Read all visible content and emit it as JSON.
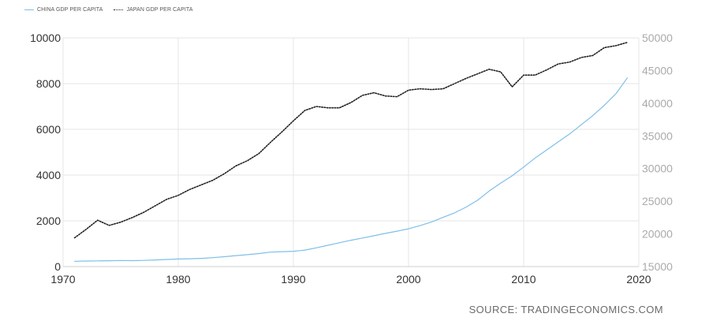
{
  "legend": {
    "china": "CHINA GDP PER CAPITA",
    "japan": "JAPAN GDP PER CAPITA"
  },
  "source": "SOURCE: TRADINGECONOMICS.COM",
  "colors": {
    "china": "#7fbfe8",
    "japan": "#222222",
    "grid": "#e6e6e6",
    "axis_text": "#333333",
    "axis_text_right": "#aaaaaa"
  },
  "chart_data": {
    "type": "line",
    "title": "",
    "xlabel": "",
    "ylabel": "",
    "xlim": [
      1970,
      2020
    ],
    "x_ticks": [
      1970,
      1980,
      1990,
      2000,
      2010,
      2020
    ],
    "y_left_lim": [
      0,
      10000
    ],
    "y_left_ticks": [
      0,
      2000,
      4000,
      6000,
      8000,
      10000
    ],
    "y_right_lim": [
      15000,
      50000
    ],
    "y_right_ticks": [
      15000,
      20000,
      25000,
      30000,
      35000,
      40000,
      45000,
      50000
    ],
    "grid": true,
    "legend_position": "top-left",
    "series": [
      {
        "name": "CHINA GDP PER CAPITA",
        "axis": "left",
        "style": "solid",
        "x": [
          1971,
          1972,
          1973,
          1974,
          1975,
          1976,
          1977,
          1978,
          1979,
          1980,
          1981,
          1982,
          1983,
          1984,
          1985,
          1986,
          1987,
          1988,
          1989,
          1990,
          1991,
          1992,
          1993,
          1994,
          1995,
          1996,
          1997,
          1998,
          1999,
          2000,
          2001,
          2002,
          2003,
          2004,
          2005,
          2006,
          2007,
          2008,
          2009,
          2010,
          2011,
          2012,
          2013,
          2014,
          2015,
          2016,
          2017,
          2018,
          2019
        ],
        "values": [
          230,
          240,
          250,
          255,
          265,
          260,
          270,
          290,
          310,
          330,
          340,
          360,
          390,
          430,
          480,
          520,
          570,
          630,
          650,
          670,
          720,
          820,
          930,
          1040,
          1150,
          1250,
          1350,
          1450,
          1550,
          1650,
          1790,
          1950,
          2150,
          2350,
          2600,
          2900,
          3300,
          3650,
          3970,
          4350,
          4750,
          5100,
          5450,
          5800,
          6200,
          6600,
          7050,
          7550,
          8250
        ]
      },
      {
        "name": "JAPAN GDP PER CAPITA",
        "axis": "right",
        "style": "dotted",
        "x": [
          1971,
          1972,
          1973,
          1974,
          1975,
          1976,
          1977,
          1978,
          1979,
          1980,
          1981,
          1982,
          1983,
          1984,
          1985,
          1986,
          1987,
          1988,
          1989,
          1990,
          1991,
          1992,
          1993,
          1994,
          1995,
          1996,
          1997,
          1998,
          1999,
          2000,
          2001,
          2002,
          2003,
          2004,
          2005,
          2006,
          2007,
          2008,
          2009,
          2010,
          2011,
          2012,
          2013,
          2014,
          2015,
          2016,
          2017,
          2018,
          2019
        ],
        "values": [
          19400,
          20700,
          22100,
          21300,
          21800,
          22500,
          23300,
          24300,
          25300,
          25900,
          26800,
          27500,
          28200,
          29200,
          30400,
          31200,
          32300,
          34000,
          35600,
          37300,
          38900,
          39500,
          39300,
          39300,
          40100,
          41200,
          41600,
          41100,
          41000,
          42000,
          42200,
          42100,
          42200,
          43000,
          43800,
          44500,
          45200,
          44800,
          42500,
          44300,
          44300,
          45100,
          46000,
          46300,
          47000,
          47300,
          48500,
          48800,
          49300
        ]
      }
    ]
  }
}
